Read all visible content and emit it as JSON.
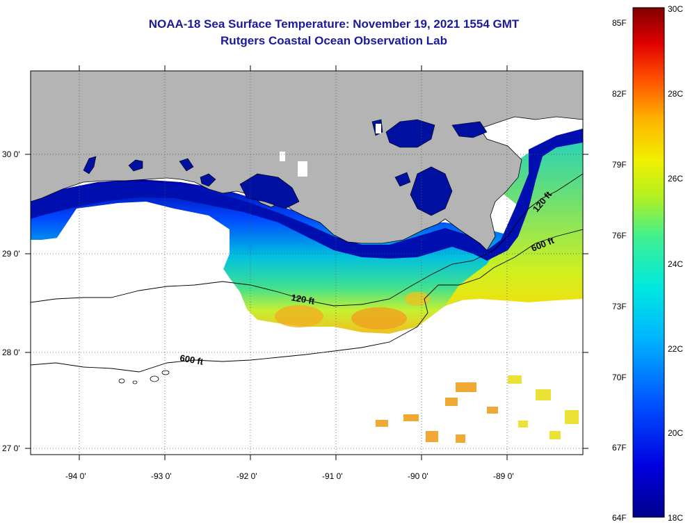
{
  "title": {
    "line1": "NOAA-18 Sea Surface Temperature:  November 19, 2021 1554 GMT",
    "line2": "Rutgers Coastal Ocean Observation Lab"
  },
  "map": {
    "lat_labels": [
      "30 0'",
      "29 0'",
      "28 0'",
      "27 0'"
    ],
    "lon_labels": [
      "-94 0'",
      "-93 0'",
      "-92 0'",
      "-91 0'",
      "-90 0'",
      "-89 0'"
    ],
    "contour_labels": [
      "120 ft",
      "120 ft",
      "600 ft",
      "600 ft"
    ],
    "colors": {
      "land": "#b4b4b4",
      "cloud": "#ffffff",
      "contour": "#000000"
    }
  },
  "colorbar": {
    "fahrenheit": [
      "85F",
      "82F",
      "79F",
      "76F",
      "73F",
      "70F",
      "67F",
      "64F"
    ],
    "celsius": [
      "30C",
      "28C",
      "26C",
      "24C",
      "22C",
      "20C",
      "18C"
    ],
    "min_c": 18,
    "max_c": 30
  }
}
